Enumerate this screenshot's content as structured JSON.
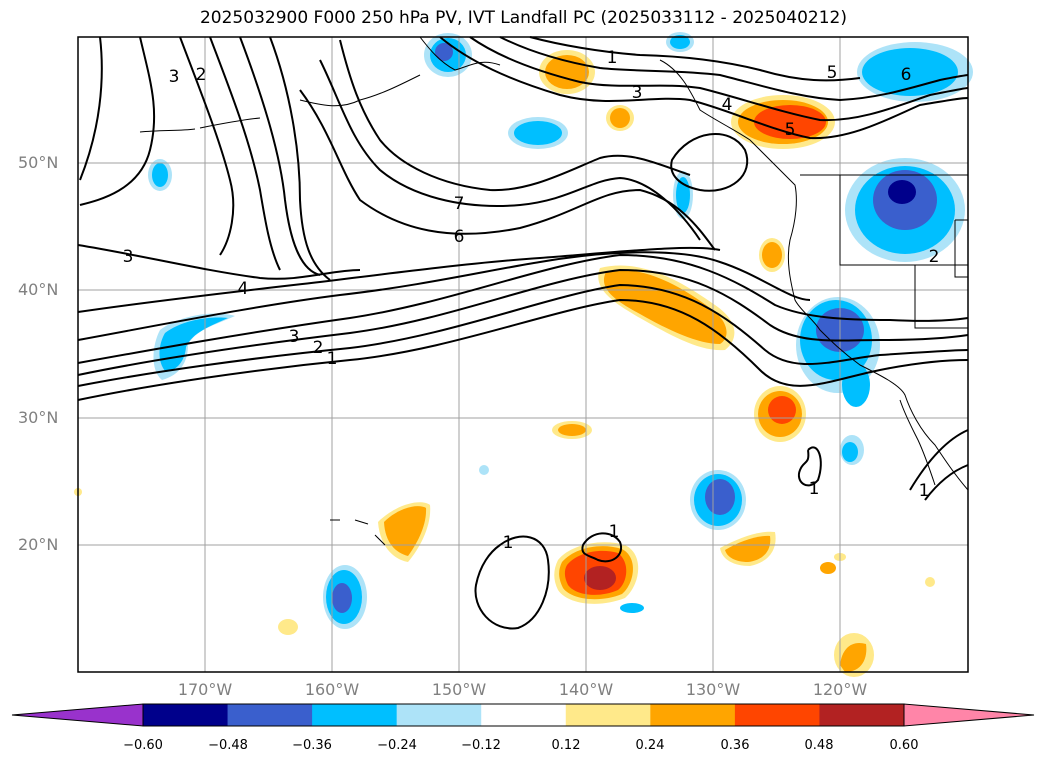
{
  "title": "2025032900 F000 250 hPa PV, IVT Landfall PC (2025033112 - 2025040212)",
  "lat_labels": [
    "50°N",
    "40°N",
    "30°N",
    "20°N"
  ],
  "lon_labels": [
    "170°W",
    "160°W",
    "150°W",
    "140°W",
    "130°W",
    "120°W"
  ],
  "contour_labels": [
    "3",
    "2",
    "3",
    "4",
    "7",
    "6",
    "3",
    "2",
    "1",
    "1",
    "3",
    "4",
    "5",
    "5",
    "6",
    "1",
    "1",
    "1",
    "2",
    "1"
  ],
  "colorbar": {
    "ticks": [
      "−0.60",
      "−0.48",
      "−0.36",
      "−0.24",
      "−0.12",
      "0.12",
      "0.24",
      "0.36",
      "0.48",
      "0.60"
    ],
    "colors": [
      "#9932CC",
      "#00008B",
      "#3A5FCD",
      "#00BFFF",
      "#ADE3F8",
      "#FFFFFF",
      "#FFE98A",
      "#FFA500",
      "#FF4500",
      "#B22222",
      "#FF85A8"
    ]
  },
  "palette": {
    "dark_blue": "#00008B",
    "mid_blue": "#3A5FCD",
    "cyan": "#00BFFF",
    "light_blue": "#ADE3F8",
    "light_yellow": "#FFE98A",
    "orange": "#FFA500",
    "red_orange": "#FF4500",
    "dark_red": "#B22222"
  }
}
